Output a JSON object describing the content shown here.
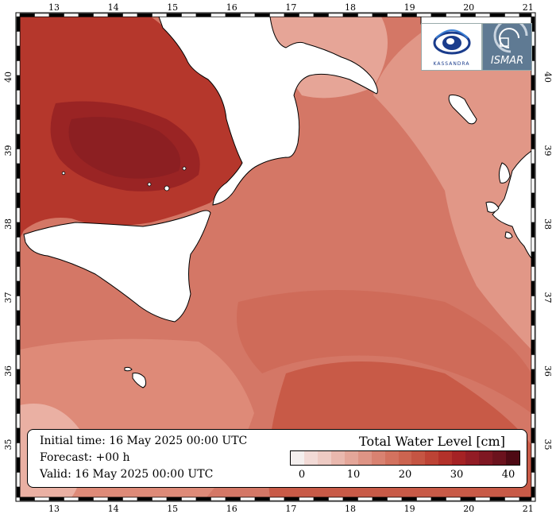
{
  "map": {
    "lon_ticks": [
      "13",
      "14",
      "15",
      "16",
      "17",
      "18",
      "19",
      "20",
      "21"
    ],
    "lat_ticks": [
      "40",
      "39",
      "38",
      "37",
      "36",
      "35"
    ],
    "sea_color": "#d47766",
    "land_color": "#ffffff"
  },
  "info": {
    "initial_time": "Initial time: 16 May 2025 00:00 UTC",
    "forecast": "Forecast: +00 h",
    "valid": "Valid: 16 May 2025 00:00 UTC"
  },
  "legend": {
    "title": "Total Water Level [cm]",
    "labels": [
      "0",
      "10",
      "20",
      "30",
      "40"
    ],
    "colors": [
      "#f4efee",
      "#f2dad6",
      "#eecbc4",
      "#e9b8ae",
      "#e4a699",
      "#de9485",
      "#d98271",
      "#d3725f",
      "#cc6450",
      "#c55543",
      "#bd4335",
      "#b3312a",
      "#a52224",
      "#921c25",
      "#7f1722",
      "#6b121d",
      "#4e0a14"
    ]
  },
  "logos": {
    "left_text": "KASSANDRA",
    "right_text": "ISMAR",
    "left_icon": "eye-logo-icon",
    "right_icon": "spiral-logo-icon"
  }
}
